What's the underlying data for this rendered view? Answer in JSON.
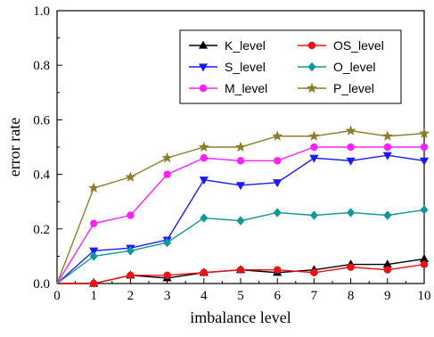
{
  "chart_data": {
    "type": "line",
    "title": "",
    "xlabel": "imbalance level",
    "ylabel": "error rate",
    "xlim": [
      0,
      10
    ],
    "ylim": [
      0,
      1.0
    ],
    "x_ticks": [
      0,
      1,
      2,
      3,
      4,
      5,
      6,
      7,
      8,
      9,
      10
    ],
    "y_ticks": [
      0.0,
      0.2,
      0.4,
      0.6,
      0.8,
      1.0
    ],
    "y_tick_labels": [
      "0.0",
      "0.2",
      "0.4",
      "0.6",
      "0.8",
      "1.0"
    ],
    "grid": false,
    "legend_position": "top-right",
    "x": [
      0,
      1,
      2,
      3,
      4,
      5,
      6,
      7,
      8,
      9,
      10
    ],
    "series": [
      {
        "name": "K_level",
        "color": "#000000",
        "marker": "triangle-up",
        "values": [
          0,
          0.0,
          0.03,
          0.02,
          0.04,
          0.05,
          0.04,
          0.05,
          0.07,
          0.07,
          0.09
        ]
      },
      {
        "name": "OS_level",
        "color": "#ee1111",
        "marker": "circle",
        "values": [
          0,
          0.0,
          0.03,
          0.03,
          0.04,
          0.05,
          0.05,
          0.04,
          0.06,
          0.05,
          0.07
        ]
      },
      {
        "name": "S_level",
        "color": "#1a1aff",
        "marker": "triangle-down",
        "values": [
          0,
          0.12,
          0.13,
          0.16,
          0.38,
          0.36,
          0.37,
          0.46,
          0.45,
          0.47,
          0.45
        ]
      },
      {
        "name": "O_level",
        "color": "#119999",
        "marker": "diamond",
        "values": [
          0,
          0.1,
          0.12,
          0.15,
          0.24,
          0.23,
          0.26,
          0.25,
          0.26,
          0.25,
          0.27
        ]
      },
      {
        "name": "M_level",
        "color": "#ff22ff",
        "marker": "circle",
        "values": [
          0,
          0.22,
          0.25,
          0.4,
          0.46,
          0.45,
          0.45,
          0.5,
          0.5,
          0.5,
          0.5
        ]
      },
      {
        "name": "P_level",
        "color": "#8b7d2a",
        "marker": "star",
        "values": [
          0,
          0.35,
          0.39,
          0.46,
          0.5,
          0.5,
          0.54,
          0.54,
          0.56,
          0.54,
          0.55
        ]
      }
    ]
  }
}
